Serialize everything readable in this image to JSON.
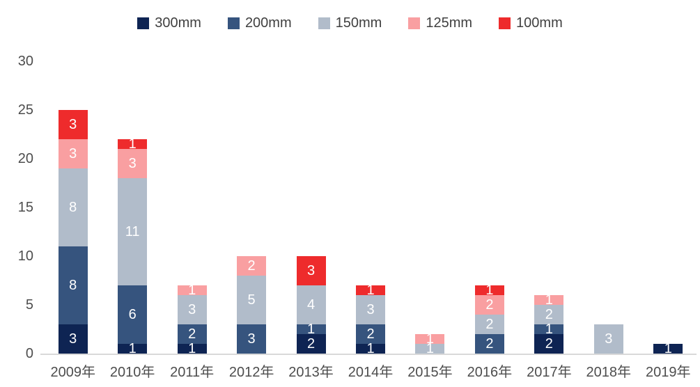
{
  "chart_data": {
    "type": "bar",
    "stacked": true,
    "title": "",
    "xlabel": "",
    "ylabel": "",
    "ylim": [
      0,
      30
    ],
    "yticks": [
      0,
      5,
      10,
      15,
      20,
      25,
      30
    ],
    "grid": false,
    "legend_position": "top-center",
    "categories": [
      "2009年",
      "2010年",
      "2011年",
      "2012年",
      "2013年",
      "2014年",
      "2015年",
      "2016年",
      "2017年",
      "2018年",
      "2019年"
    ],
    "series": [
      {
        "name": "300mm",
        "color": "#0e2453",
        "values": [
          3,
          1,
          1,
          0,
          2,
          1,
          0,
          0,
          2,
          0,
          1
        ]
      },
      {
        "name": "200mm",
        "color": "#36547e",
        "values": [
          8,
          6,
          2,
          3,
          1,
          2,
          0,
          2,
          1,
          0,
          0
        ]
      },
      {
        "name": "150mm",
        "color": "#b1bcca",
        "values": [
          8,
          11,
          3,
          5,
          4,
          3,
          1,
          2,
          2,
          3,
          0
        ]
      },
      {
        "name": "125mm",
        "color": "#f99fa1",
        "values": [
          3,
          3,
          1,
          2,
          0,
          0,
          1,
          2,
          1,
          0,
          0
        ]
      },
      {
        "name": "100mm",
        "color": "#ee2b2c",
        "values": [
          3,
          1,
          0,
          0,
          3,
          1,
          0,
          1,
          0,
          0,
          0
        ]
      }
    ],
    "value_label_color": "#ffffff",
    "axis_text_color": "#4d4d4d",
    "baseline_color": "#d9d9d9"
  }
}
